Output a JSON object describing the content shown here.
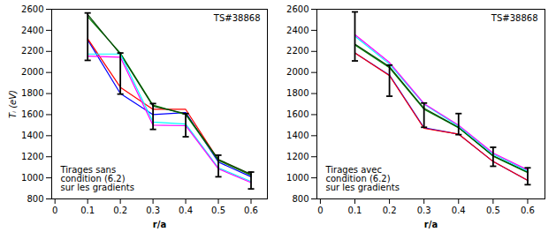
{
  "chart_data": [
    {
      "type": "line",
      "x": [
        0.1,
        0.2,
        0.3,
        0.4,
        0.5,
        0.6
      ],
      "series": [
        {
          "color": "blue",
          "values": [
            2310,
            1800,
            1600,
            1620,
            1150,
            1010
          ]
        },
        {
          "color": "red",
          "values": [
            2320,
            1860,
            1650,
            1650,
            1170,
            1030
          ]
        },
        {
          "color": "#008000",
          "values": [
            2530,
            2185,
            1690,
            1600,
            1165,
            1025
          ]
        },
        {
          "color": "#004400",
          "values": [
            2550,
            2175,
            1680,
            1610,
            1175,
            1035
          ]
        },
        {
          "color": "cyan",
          "values": [
            2175,
            2175,
            1530,
            1510,
            1095,
            965
          ]
        },
        {
          "color": "magenta",
          "values": [
            2155,
            2145,
            1500,
            1495,
            1085,
            955
          ]
        }
      ],
      "error_bars": {
        "x": [
          0.1,
          0.2,
          0.3,
          0.4,
          0.5,
          0.6
        ],
        "y": [
          2350,
          1990,
          1595,
          1555,
          1130,
          990
        ],
        "yerr_low": [
          235,
          195,
          135,
          165,
          120,
          95
        ],
        "yerr_high": [
          215,
          195,
          110,
          55,
          85,
          65
        ]
      },
      "annotations": [
        "Tirages sans\ncondition (6.2)\nsur les gradients",
        "TS#38868"
      ],
      "xlabel": "r/a",
      "ylabel": "Tᵢ (eV)",
      "xlim": [
        -0.01,
        0.65
      ],
      "ylim": [
        800,
        2600
      ],
      "xticks": [
        0,
        0.1,
        0.2,
        0.3,
        0.4,
        0.5,
        0.6
      ],
      "yticks": [
        800,
        1000,
        1200,
        1400,
        1600,
        1800,
        2000,
        2200,
        2400,
        2600
      ]
    },
    {
      "type": "line",
      "x": [
        0.1,
        0.2,
        0.3,
        0.4,
        0.5,
        0.6
      ],
      "series": [
        {
          "color": "blue",
          "values": [
            2185,
            1975,
            1475,
            1415,
            1155,
            975
          ]
        },
        {
          "color": "red",
          "values": [
            2185,
            1970,
            1470,
            1415,
            1155,
            975
          ]
        },
        {
          "color": "#008000",
          "values": [
            2260,
            2045,
            1650,
            1475,
            1205,
            1050
          ]
        },
        {
          "color": "#004400",
          "values": [
            2270,
            2055,
            1660,
            1480,
            1210,
            1055
          ]
        },
        {
          "color": "cyan",
          "values": [
            2345,
            2080,
            1700,
            1490,
            1225,
            1065
          ]
        },
        {
          "color": "magenta",
          "values": [
            2360,
            2095,
            1705,
            1500,
            1235,
            1075
          ]
        }
      ],
      "error_bars": {
        "x": [
          0.1,
          0.2,
          0.3,
          0.4,
          0.5,
          0.6
        ],
        "y": [
          2265,
          1940,
          1590,
          1510,
          1195,
          1020
        ],
        "yerr_low": [
          155,
          165,
          110,
          100,
          85,
          85
        ],
        "yerr_high": [
          310,
          130,
          120,
          100,
          95,
          75
        ]
      },
      "annotations": [
        "Tirages avec\ncondition (6.2)\nsur les gradients",
        "TS#38868"
      ],
      "xlabel": "r/a",
      "xlim": [
        -0.01,
        0.65
      ],
      "ylim": [
        800,
        2600
      ],
      "xticks": [
        0,
        0.1,
        0.2,
        0.3,
        0.4,
        0.5,
        0.6
      ],
      "yticks": [
        800,
        1000,
        1200,
        1400,
        1600,
        1800,
        2000,
        2200,
        2400,
        2600
      ]
    }
  ]
}
